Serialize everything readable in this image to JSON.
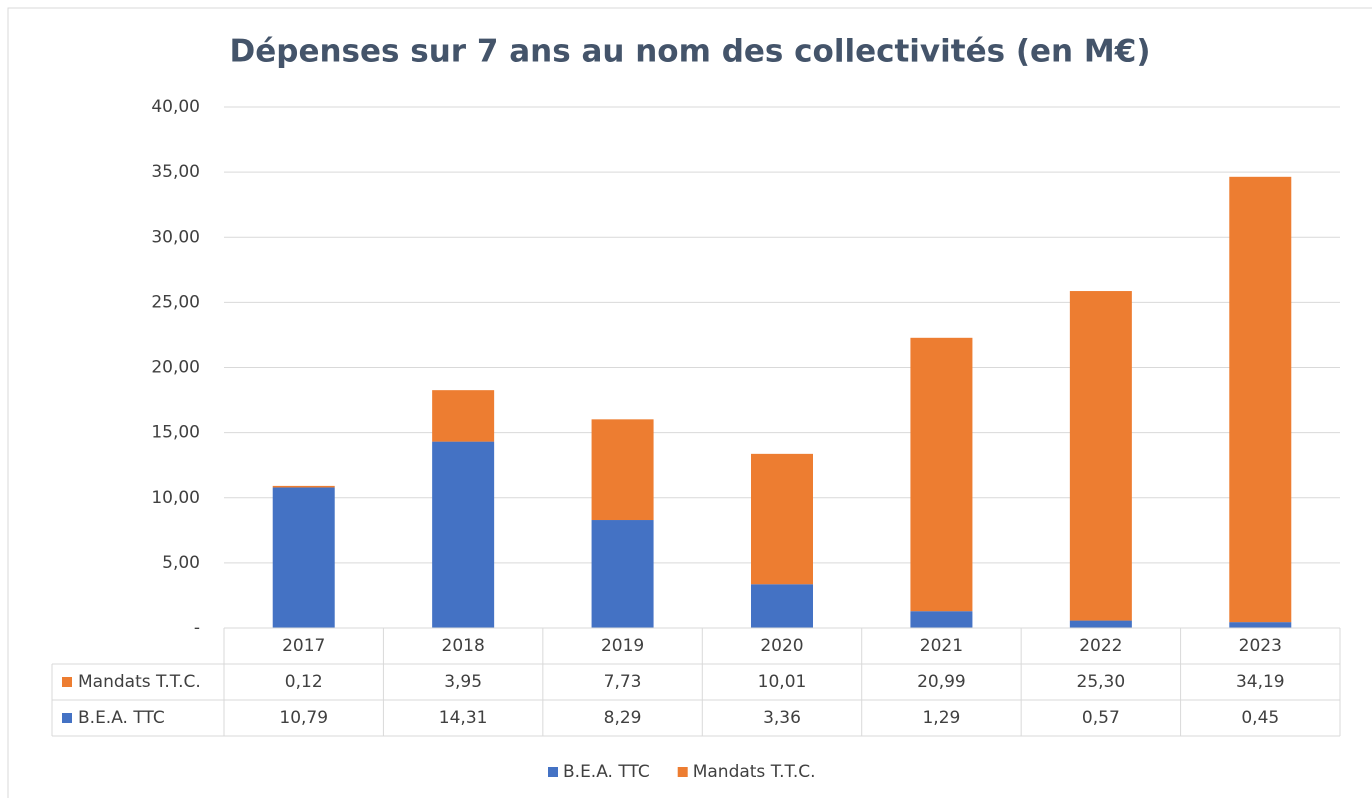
{
  "chart_data": {
    "type": "stacked_bar",
    "title": "Dépenses sur 7 ans au nom des collectivités (en M€)",
    "categories": [
      "2017",
      "2018",
      "2019",
      "2020",
      "2021",
      "2022",
      "2023"
    ],
    "series": [
      {
        "name": "B.E.A. TTC",
        "color": "#4472c4",
        "values": [
          10.79,
          14.31,
          8.29,
          3.36,
          1.29,
          0.57,
          0.45
        ],
        "value_labels": [
          "10,79",
          "14,31",
          "8,29",
          "3,36",
          "1,29",
          "0,57",
          "0,45"
        ]
      },
      {
        "name": "Mandats T.T.C.",
        "color": "#ed7d31",
        "values": [
          0.12,
          3.95,
          7.73,
          10.01,
          20.99,
          25.3,
          34.19
        ],
        "value_labels": [
          "0,12",
          "3,95",
          "7,73",
          "10,01",
          "20,99",
          "25,30",
          "34,19"
        ]
      }
    ],
    "ylim": [
      0,
      40
    ],
    "yticks": [
      {
        "value": 0,
        "label": "-"
      },
      {
        "value": 5,
        "label": "5,00"
      },
      {
        "value": 10,
        "label": "10,00"
      },
      {
        "value": 15,
        "label": "15,00"
      },
      {
        "value": 20,
        "label": "20,00"
      },
      {
        "value": 25,
        "label": "25,00"
      },
      {
        "value": 30,
        "label": "30,00"
      },
      {
        "value": 35,
        "label": "35,00"
      },
      {
        "value": 40,
        "label": "40,00"
      }
    ],
    "grid": true,
    "legend": "bottom"
  }
}
